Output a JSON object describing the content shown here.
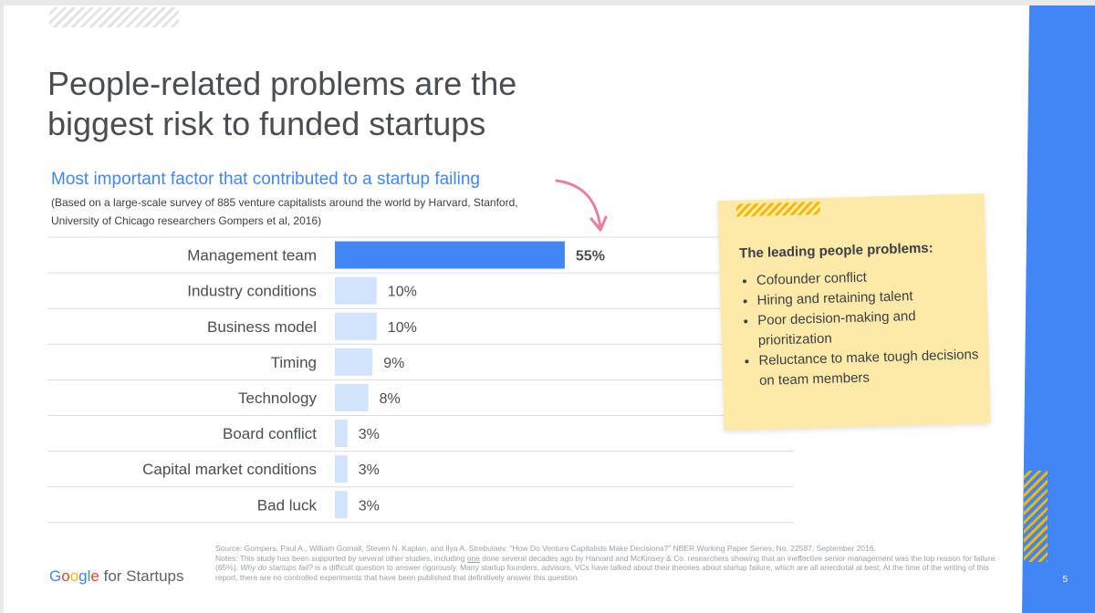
{
  "slide": {
    "title": "People-related problems are the biggest risk to funded startups",
    "subtitle": "Most important factor that contributed to a startup failing",
    "subnote": "(Based on a large-scale survey of 885 venture capitalists around the world by Harvard, Stanford, University of Chicago researchers Gompers et al, 2016)",
    "page_number": "5"
  },
  "chart_data": {
    "type": "bar",
    "orientation": "horizontal",
    "title": "Most important factor that contributed to a startup failing",
    "categories": [
      "Management team",
      "Industry conditions",
      "Business model",
      "Timing",
      "Technology",
      "Board conflict",
      "Capital market conditions",
      "Bad luck"
    ],
    "values": [
      55,
      10,
      10,
      9,
      8,
      3,
      3,
      3
    ],
    "value_labels": [
      "55%",
      "10%",
      "10%",
      "9%",
      "8%",
      "3%",
      "3%",
      "3%"
    ],
    "unit": "%",
    "highlight_index": 0,
    "colors": {
      "highlight": "#4285f4",
      "bar": "#d2e3fc",
      "highlight_label": "#4285f4"
    },
    "legend": "none",
    "grid": "row separators"
  },
  "note": {
    "heading": "The leading people problems:",
    "items": [
      "Cofounder conflict",
      "Hiring and retaining talent",
      "Poor decision-making and prioritization",
      "Reluctance to make tough decisions on team members"
    ]
  },
  "footer": {
    "logo_google": "Google",
    "logo_rest": "for Startups",
    "source": "Source: Gompers, Paul A., William Gornall, Steven N. Kaplan, and Ilya A. Strebulaev. \"How Do Venture Capitalists Make Decisions?\" NBER Working Paper Series, No. 22587, September 2016.",
    "notes_prefix": "Notes: This study has been supported by several other studies, including",
    "notes_one": "one",
    "notes_mid": "done several decades ago by Harvard and McKinsey & Co. researchers showing that an ineffective senior management was the top reason for failure (65%).",
    "notes_italic": "Why do startups fail?",
    "notes_suffix": "is a difficult question to answer rigorously. Many startup founders, advisors, VCs have talked about their theories about startup failure, which are all anecdotal at best. At the time of the writing of this report, there are no controlled experiments that have been published that definitively answer this question."
  },
  "colors": {
    "brand_blue": "#4285f4",
    "note_yellow": "#fde9a8",
    "accent_yellow": "#f5b800",
    "arrow_pink": "#e77fa0"
  },
  "logo_colors": [
    "#4285f4",
    "#ea4335",
    "#fbbc05",
    "#4285f4",
    "#34a853",
    "#ea4335"
  ]
}
